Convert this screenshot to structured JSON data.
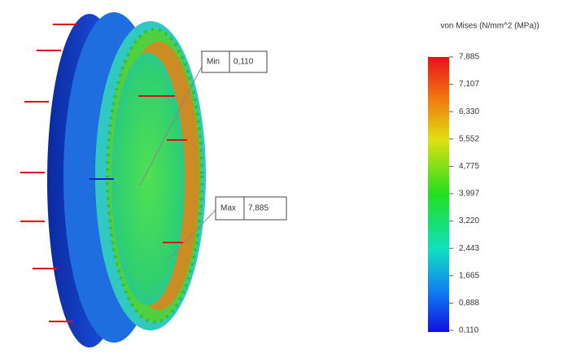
{
  "legend": {
    "title": "von Mises (N/mm^2 (MPa))",
    "ticks": [
      "7,885",
      "7,107",
      "6,330",
      "5,552",
      "4,775",
      "3,997",
      "3,220",
      "2,443",
      "1,665",
      "0,888",
      "0,110"
    ]
  },
  "probes": [
    {
      "label": "Min",
      "value": "0,110"
    },
    {
      "label": "Max",
      "value": "7,885"
    }
  ]
}
